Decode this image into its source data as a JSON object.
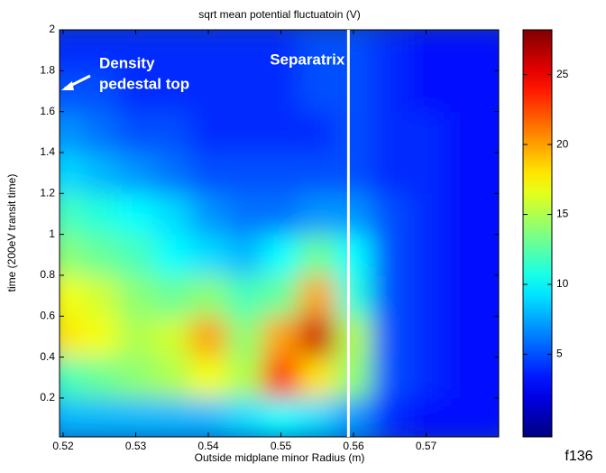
{
  "chart_data": {
    "type": "heatmap",
    "title": "sqrt mean potential fluctuatoin (V)",
    "x_label": "Outside midplane minor Radius (m)",
    "y_label": "time (200eV transit time)",
    "x": [
      0.52,
      0.525,
      0.53,
      0.535,
      0.54,
      0.545,
      0.55,
      0.555,
      0.56,
      0.565,
      0.57,
      0.575,
      0.58
    ],
    "y": [
      0.1,
      0.3,
      0.5,
      0.7,
      0.9,
      1.1,
      1.3,
      1.5,
      1.7,
      1.9
    ],
    "z": [
      [
        8,
        8,
        8,
        8,
        8,
        9,
        10,
        9,
        7,
        4,
        3,
        3,
        3
      ],
      [
        12,
        13,
        14,
        15,
        17,
        15,
        24,
        18,
        14,
        5,
        4,
        3,
        3
      ],
      [
        18,
        17,
        15,
        16,
        20,
        14,
        20,
        26,
        15,
        5,
        4,
        3,
        3
      ],
      [
        17,
        16,
        14,
        13,
        14,
        12,
        13,
        20,
        11,
        5,
        4,
        3,
        3
      ],
      [
        14,
        13,
        12,
        10,
        9,
        8,
        10,
        13,
        10,
        5,
        4,
        3,
        3
      ],
      [
        12,
        11,
        10,
        9,
        7,
        6,
        6,
        7,
        7,
        5,
        4,
        3,
        3
      ],
      [
        9,
        8,
        7,
        6,
        5,
        5,
        5,
        5,
        5,
        4,
        4,
        3,
        3
      ],
      [
        7,
        6,
        5,
        5,
        4,
        4,
        4,
        4,
        5,
        4,
        4,
        3,
        3
      ],
      [
        5,
        5,
        4,
        4,
        4,
        4,
        4,
        5,
        5,
        4,
        3,
        3,
        3
      ],
      [
        4,
        4,
        4,
        4,
        4,
        4,
        4,
        5,
        5,
        4,
        3,
        3,
        3
      ]
    ],
    "xlim": [
      0.5195,
      0.58
    ],
    "ylim": [
      0.01,
      2
    ],
    "xticks": [
      0.52,
      0.53,
      0.54,
      0.55,
      0.56,
      0.57
    ],
    "yticks": [
      0.2,
      0.4,
      0.6,
      0.8,
      1,
      1.2,
      1.4,
      1.6,
      1.8,
      2
    ],
    "colormap": "jet",
    "clim": [
      -0.9,
      28.2
    ],
    "cticks": [
      5,
      10,
      15,
      20,
      25
    ],
    "separatrix": {
      "x": 0.5593,
      "label": "Separatrix",
      "color": "#ffffff"
    },
    "annotation": [
      "Density",
      "pedestal top"
    ],
    "figure_label": "f136"
  }
}
